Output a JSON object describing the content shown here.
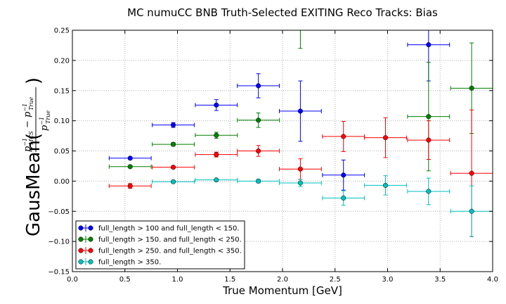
{
  "chart_data": {
    "type": "scatter",
    "title": "MC numuCC BNB Truth-Selected EXITING Reco Tracks: Bias",
    "xlabel": "True Momentum [GeV]",
    "ylabel": {
      "prefix": "GausMean(",
      "suffix": ")",
      "numerator_a": "p",
      "numerator_a_sup": "−1",
      "numerator_a_sub": "MCS",
      "numerator_minus": " − ",
      "numerator_b": "p",
      "numerator_b_sup": "−1",
      "numerator_b_sub": "True",
      "denominator": "p",
      "denominator_sup": "−1",
      "denominator_sub": "True"
    },
    "xlim": [
      0.0,
      4.0
    ],
    "ylim": [
      -0.15,
      0.25
    ],
    "xticks": [
      "0.0",
      "0.5",
      "1.0",
      "1.5",
      "2.0",
      "2.5",
      "3.0",
      "3.5",
      "4.0"
    ],
    "yticks": [
      "−0.15",
      "−0.10",
      "−0.05",
      "0.00",
      "0.05",
      "0.10",
      "0.15",
      "0.20",
      "0.25"
    ],
    "grid": true,
    "legend_position": "bottom-left",
    "series": [
      {
        "name": "full_length > 100 and full_length < 150.",
        "color": "#0000ff",
        "points": [
          {
            "x": 0.55,
            "y": 0.038,
            "xerr": 0.2,
            "yerr": 0.002
          },
          {
            "x": 0.96,
            "y": 0.093,
            "xerr": 0.2,
            "yerr": 0.004
          },
          {
            "x": 1.37,
            "y": 0.126,
            "xerr": 0.2,
            "yerr": 0.009
          },
          {
            "x": 1.77,
            "y": 0.158,
            "xerr": 0.2,
            "yerr": 0.02
          },
          {
            "x": 2.17,
            "y": 0.116,
            "xerr": 0.2,
            "yerr": 0.05
          },
          {
            "x": 2.58,
            "y": 0.01,
            "xerr": 0.2,
            "yerr": 0.025
          },
          {
            "x": 3.39,
            "y": 0.226,
            "xerr": 0.2,
            "yerr": 0.06
          }
        ]
      },
      {
        "name": "full_length > 150. and full_length < 250.",
        "color": "#007f00",
        "points": [
          {
            "x": 0.55,
            "y": 0.024,
            "xerr": 0.2,
            "yerr": 0.002
          },
          {
            "x": 0.96,
            "y": 0.061,
            "xerr": 0.2,
            "yerr": 0.003
          },
          {
            "x": 1.37,
            "y": 0.076,
            "xerr": 0.2,
            "yerr": 0.005
          },
          {
            "x": 1.77,
            "y": 0.101,
            "xerr": 0.2,
            "yerr": 0.012
          },
          {
            "x": 2.17,
            "y": 0.255,
            "xerr": 0.2,
            "yerr": 0.035
          },
          {
            "x": 3.39,
            "y": 0.107,
            "xerr": 0.2,
            "yerr": 0.09
          },
          {
            "x": 3.8,
            "y": 0.154,
            "xerr": 0.2,
            "yerr": 0.075
          }
        ]
      },
      {
        "name": "full_length > 250. and full_length < 350.",
        "color": "#ff0000",
        "points": [
          {
            "x": 0.55,
            "y": -0.008,
            "xerr": 0.2,
            "yerr": 0.004
          },
          {
            "x": 0.96,
            "y": 0.023,
            "xerr": 0.2,
            "yerr": 0.002
          },
          {
            "x": 1.37,
            "y": 0.044,
            "xerr": 0.2,
            "yerr": 0.004
          },
          {
            "x": 1.77,
            "y": 0.05,
            "xerr": 0.2,
            "yerr": 0.009
          },
          {
            "x": 2.17,
            "y": 0.02,
            "xerr": 0.2,
            "yerr": 0.017
          },
          {
            "x": 2.58,
            "y": 0.074,
            "xerr": 0.2,
            "yerr": 0.025
          },
          {
            "x": 2.98,
            "y": 0.072,
            "xerr": 0.2,
            "yerr": 0.033
          },
          {
            "x": 3.39,
            "y": 0.068,
            "xerr": 0.2,
            "yerr": 0.032
          },
          {
            "x": 3.8,
            "y": 0.013,
            "xerr": 0.2,
            "yerr": 0.105
          }
        ]
      },
      {
        "name": "full_length > 350.",
        "color": "#00bfbf",
        "points": [
          {
            "x": 0.96,
            "y": -0.001,
            "xerr": 0.2,
            "yerr": 0.002
          },
          {
            "x": 1.37,
            "y": 0.002,
            "xerr": 0.2,
            "yerr": 0.002
          },
          {
            "x": 1.77,
            "y": 0.0,
            "xerr": 0.2,
            "yerr": 0.003
          },
          {
            "x": 2.17,
            "y": -0.003,
            "xerr": 0.2,
            "yerr": 0.006
          },
          {
            "x": 2.58,
            "y": -0.028,
            "xerr": 0.2,
            "yerr": 0.012
          },
          {
            "x": 2.98,
            "y": -0.007,
            "xerr": 0.2,
            "yerr": 0.016
          },
          {
            "x": 3.39,
            "y": -0.017,
            "xerr": 0.2,
            "yerr": 0.022
          },
          {
            "x": 3.8,
            "y": -0.05,
            "xerr": 0.2,
            "yerr": 0.042
          }
        ]
      }
    ]
  }
}
